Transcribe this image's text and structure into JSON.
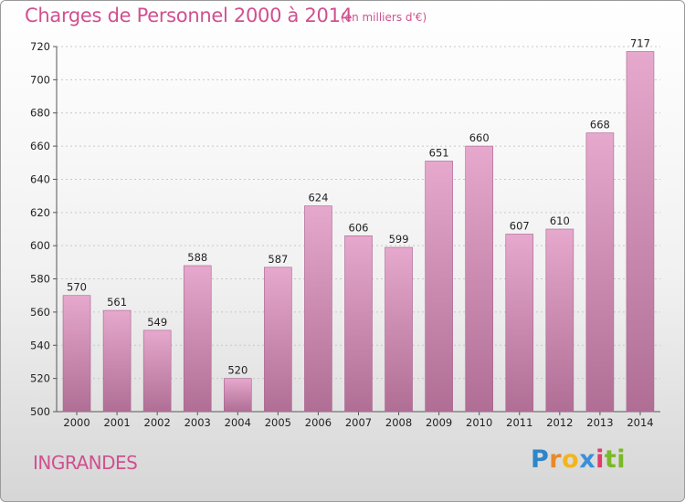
{
  "header": {
    "title": "Charges de Personnel 2000 à 2014",
    "subtitle": "(en milliers d'€)"
  },
  "footer": {
    "commune": "INGRANDES",
    "logo_letters": [
      "P",
      "r",
      "o",
      "x",
      "i",
      "t",
      "i"
    ],
    "logo_colors": [
      "#2e86c8",
      "#e8892a",
      "#f2b51c",
      "#3b8fd8",
      "#e03b6b",
      "#7ab828",
      "#7ab828"
    ]
  },
  "colors": {
    "bar_top": "#e6a8cc",
    "bar_bottom": "#b06e95",
    "accent": "#d0508f"
  },
  "chart_data": {
    "type": "bar",
    "categories": [
      "2000",
      "2001",
      "2002",
      "2003",
      "2004",
      "2005",
      "2006",
      "2007",
      "2008",
      "2009",
      "2010",
      "2011",
      "2012",
      "2013",
      "2014"
    ],
    "values": [
      570,
      561,
      549,
      588,
      520,
      587,
      624,
      606,
      599,
      651,
      660,
      607,
      610,
      668,
      717
    ],
    "ylim": [
      500,
      720
    ],
    "yticks": [
      500,
      520,
      540,
      560,
      580,
      600,
      620,
      640,
      660,
      680,
      700,
      720
    ],
    "grid": true,
    "data_labels": true
  }
}
